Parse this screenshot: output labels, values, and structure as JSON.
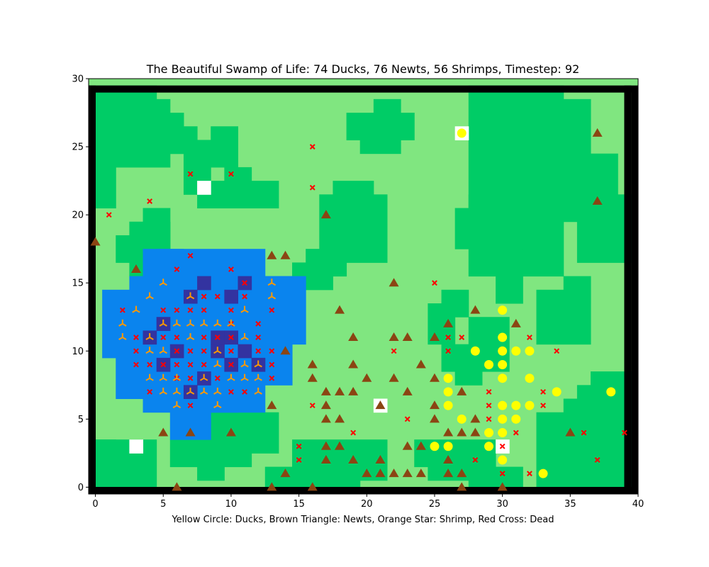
{
  "window": {
    "title": "The Beautiful Swamp of Life: 74 Ducks, 76 Newts, 56 Shrimps, Timestep: 92",
    "xlabel": "Yellow Circle: Ducks, Brown Triangle: Newts, Orange Star: Shrimp, Red Cross: Dead"
  },
  "counts": {
    "ducks": 74,
    "newts": 76,
    "shrimps": 56,
    "timestep": 92
  },
  "chart_data": {
    "type": "scatter",
    "title": "The Beautiful Swamp of Life: 74 Ducks, 76 Newts, 56 Shrimps, Timestep: 92",
    "xlabel": "Yellow Circle: Ducks, Brown Triangle: Newts, Orange Star: Shrimp, Red Cross: Dead",
    "ylabel": "",
    "xlim": [
      -0.5,
      40
    ],
    "ylim": [
      -0.5,
      30
    ],
    "xticks": [
      "0",
      "5",
      "10",
      "15",
      "20",
      "25",
      "30",
      "35",
      "40"
    ],
    "yticks": [
      "0",
      "5",
      "10",
      "15",
      "20",
      "25",
      "30"
    ],
    "colors": {
      "dark_grass": "#00cc66",
      "light_grass": "#80e680",
      "water": "#0a84ee",
      "deep_water": "#3333a0",
      "rock": "#ffffff",
      "border": "#000000",
      "duck": "#ffff00",
      "newt": "#8b4513",
      "shrimp": "#ff9900",
      "dead": "#ff0000"
    },
    "terrain": {
      "dark_rects": [
        [
          0,
          25,
          4,
          29
        ],
        [
          0,
          21,
          1,
          24
        ],
        [
          2,
          24,
          5,
          28
        ],
        [
          5,
          25,
          6,
          27
        ],
        [
          6,
          25,
          7,
          26
        ],
        [
          7,
          25,
          8,
          25
        ],
        [
          7,
          22,
          8,
          24
        ],
        [
          8,
          21,
          13,
          22
        ],
        [
          8,
          24,
          10,
          25
        ],
        [
          9,
          25,
          10,
          26
        ],
        [
          10,
          23,
          11,
          23
        ],
        [
          3,
          16,
          5,
          19
        ],
        [
          2,
          17,
          3,
          18
        ],
        [
          4,
          18,
          5,
          20
        ],
        [
          17,
          17,
          21,
          21
        ],
        [
          18,
          22,
          20,
          22
        ],
        [
          15,
          15,
          17,
          16
        ],
        [
          16,
          16,
          18,
          17
        ],
        [
          19,
          26,
          23,
          27
        ],
        [
          20,
          25,
          22,
          25
        ],
        [
          21,
          28,
          22,
          28
        ],
        [
          28,
          16,
          34,
          29
        ],
        [
          34,
          20,
          38,
          24
        ],
        [
          35,
          25,
          36,
          28
        ],
        [
          36,
          17,
          39,
          21
        ],
        [
          38,
          19,
          39,
          20
        ],
        [
          27,
          18,
          29,
          20
        ],
        [
          28,
          21,
          31,
          21
        ],
        [
          30,
          18,
          31,
          18
        ],
        [
          30,
          14,
          31,
          17
        ],
        [
          0,
          0,
          4,
          3
        ],
        [
          0,
          3,
          1,
          3
        ],
        [
          6,
          2,
          11,
          3
        ],
        [
          8,
          1,
          9,
          1
        ],
        [
          9,
          4,
          12,
          5
        ],
        [
          12,
          3,
          13,
          5
        ],
        [
          13,
          0,
          19,
          1
        ],
        [
          15,
          2,
          18,
          3
        ],
        [
          19,
          1,
          21,
          3
        ],
        [
          24,
          2,
          29,
          3
        ],
        [
          25,
          1,
          27,
          1
        ],
        [
          28,
          9,
          30,
          12
        ],
        [
          27,
          8,
          28,
          9
        ],
        [
          25,
          11,
          26,
          13
        ],
        [
          26,
          9,
          28,
          10
        ],
        [
          26,
          13,
          27,
          14
        ],
        [
          33,
          0,
          39,
          5
        ],
        [
          35,
          5,
          39,
          6
        ],
        [
          36,
          6,
          39,
          7
        ],
        [
          37,
          7,
          39,
          8
        ],
        [
          33,
          11,
          36,
          14
        ],
        [
          35,
          14,
          36,
          15
        ],
        [
          28,
          0,
          31,
          1
        ]
      ],
      "water_rects": [
        [
          5,
          11,
          12,
          17
        ],
        [
          4,
          12,
          6,
          17
        ],
        [
          3,
          13,
          4,
          15
        ],
        [
          1,
          10,
          4,
          14
        ],
        [
          2,
          7,
          4,
          10
        ],
        [
          4,
          6,
          12,
          10
        ],
        [
          12,
          8,
          14,
          15
        ],
        [
          13,
          11,
          15,
          15
        ],
        [
          6,
          4,
          8,
          6
        ],
        [
          8,
          6,
          10,
          8
        ]
      ],
      "deep_cells": [
        [
          8,
          15
        ],
        [
          11,
          15
        ],
        [
          10,
          14
        ],
        [
          7,
          14
        ],
        [
          4,
          11
        ],
        [
          6,
          10
        ],
        [
          9,
          11
        ],
        [
          10,
          11
        ],
        [
          11,
          10
        ],
        [
          5,
          9
        ],
        [
          8,
          8
        ],
        [
          10,
          9
        ],
        [
          7,
          7
        ],
        [
          5,
          12
        ],
        [
          12,
          9
        ],
        [
          9,
          10
        ]
      ],
      "rock_cells": [
        [
          8,
          22
        ],
        [
          3,
          3
        ],
        [
          27,
          26
        ],
        [
          21,
          6
        ],
        [
          30,
          3
        ]
      ],
      "border_px": 10
    },
    "ducks": [
      [
        27,
        26
      ],
      [
        30,
        13
      ],
      [
        28,
        10
      ],
      [
        30,
        11
      ],
      [
        30,
        10
      ],
      [
        31,
        10
      ],
      [
        32,
        10
      ],
      [
        29,
        9
      ],
      [
        30,
        9
      ],
      [
        26,
        8
      ],
      [
        30,
        8
      ],
      [
        32,
        8
      ],
      [
        26,
        7
      ],
      [
        34,
        7
      ],
      [
        38,
        7
      ],
      [
        26,
        6
      ],
      [
        30,
        6
      ],
      [
        31,
        6
      ],
      [
        32,
        6
      ],
      [
        27,
        5
      ],
      [
        30,
        5
      ],
      [
        31,
        5
      ],
      [
        25,
        3
      ],
      [
        26,
        3
      ],
      [
        29,
        4
      ],
      [
        30,
        4
      ],
      [
        29,
        3
      ],
      [
        30,
        2
      ],
      [
        33,
        1
      ]
    ],
    "newts": [
      [
        37,
        26
      ],
      [
        37,
        21
      ],
      [
        0,
        18
      ],
      [
        17,
        20
      ],
      [
        3,
        16
      ],
      [
        13,
        17
      ],
      [
        14,
        17
      ],
      [
        22,
        15
      ],
      [
        18,
        13
      ],
      [
        28,
        13
      ],
      [
        26,
        12
      ],
      [
        31,
        12
      ],
      [
        19,
        11
      ],
      [
        22,
        11
      ],
      [
        23,
        11
      ],
      [
        25,
        11
      ],
      [
        14,
        10
      ],
      [
        16,
        9
      ],
      [
        19,
        9
      ],
      [
        24,
        9
      ],
      [
        16,
        8
      ],
      [
        20,
        8
      ],
      [
        22,
        8
      ],
      [
        25,
        8
      ],
      [
        17,
        7
      ],
      [
        18,
        7
      ],
      [
        19,
        7
      ],
      [
        23,
        7
      ],
      [
        27,
        7
      ],
      [
        13,
        6
      ],
      [
        17,
        6
      ],
      [
        21,
        6
      ],
      [
        25,
        6
      ],
      [
        17,
        5
      ],
      [
        18,
        5
      ],
      [
        25,
        5
      ],
      [
        28,
        5
      ],
      [
        5,
        4
      ],
      [
        7,
        4
      ],
      [
        10,
        4
      ],
      [
        26,
        4
      ],
      [
        27,
        4
      ],
      [
        28,
        4
      ],
      [
        35,
        4
      ],
      [
        17,
        3
      ],
      [
        18,
        3
      ],
      [
        23,
        3
      ],
      [
        24,
        3
      ],
      [
        17,
        2
      ],
      [
        19,
        2
      ],
      [
        21,
        2
      ],
      [
        26,
        2
      ],
      [
        14,
        1
      ],
      [
        20,
        1
      ],
      [
        21,
        1
      ],
      [
        22,
        1
      ],
      [
        23,
        1
      ],
      [
        24,
        1
      ],
      [
        26,
        1
      ],
      [
        27,
        1
      ],
      [
        6,
        0
      ],
      [
        13,
        0
      ],
      [
        16,
        0
      ],
      [
        27,
        0
      ],
      [
        30,
        0
      ]
    ],
    "shrimp": [
      [
        5,
        15
      ],
      [
        13,
        15
      ],
      [
        4,
        14
      ],
      [
        7,
        14
      ],
      [
        13,
        14
      ],
      [
        3,
        13
      ],
      [
        11,
        13
      ],
      [
        2,
        12
      ],
      [
        5,
        12
      ],
      [
        6,
        12
      ],
      [
        7,
        12
      ],
      [
        8,
        12
      ],
      [
        9,
        12
      ],
      [
        10,
        12
      ],
      [
        2,
        11
      ],
      [
        4,
        11
      ],
      [
        7,
        11
      ],
      [
        11,
        11
      ],
      [
        5,
        10
      ],
      [
        9,
        10
      ],
      [
        11,
        9
      ],
      [
        4,
        8
      ],
      [
        5,
        8
      ],
      [
        6,
        8
      ],
      [
        8,
        8
      ],
      [
        10,
        8
      ],
      [
        11,
        8
      ],
      [
        12,
        8
      ],
      [
        5,
        7
      ],
      [
        6,
        7
      ],
      [
        7,
        7
      ],
      [
        8,
        7
      ],
      [
        9,
        7
      ],
      [
        12,
        7
      ],
      [
        6,
        6
      ],
      [
        9,
        6
      ],
      [
        4,
        10
      ],
      [
        9,
        9
      ],
      [
        12,
        9
      ]
    ],
    "dead": [
      [
        16,
        25
      ],
      [
        7,
        23
      ],
      [
        10,
        23
      ],
      [
        16,
        22
      ],
      [
        4,
        21
      ],
      [
        1,
        20
      ],
      [
        7,
        17
      ],
      [
        6,
        16
      ],
      [
        10,
        16
      ],
      [
        8,
        14
      ],
      [
        9,
        14
      ],
      [
        11,
        15
      ],
      [
        11,
        14
      ],
      [
        25,
        15
      ],
      [
        2,
        13
      ],
      [
        5,
        13
      ],
      [
        6,
        13
      ],
      [
        7,
        13
      ],
      [
        8,
        13
      ],
      [
        10,
        13
      ],
      [
        13,
        13
      ],
      [
        10,
        12
      ],
      [
        12,
        12
      ],
      [
        3,
        11
      ],
      [
        5,
        11
      ],
      [
        6,
        11
      ],
      [
        8,
        11
      ],
      [
        9,
        11
      ],
      [
        10,
        11
      ],
      [
        12,
        11
      ],
      [
        26,
        11
      ],
      [
        27,
        11
      ],
      [
        32,
        11
      ],
      [
        3,
        10
      ],
      [
        6,
        10
      ],
      [
        7,
        10
      ],
      [
        8,
        10
      ],
      [
        10,
        10
      ],
      [
        12,
        10
      ],
      [
        13,
        10
      ],
      [
        22,
        10
      ],
      [
        26,
        10
      ],
      [
        34,
        10
      ],
      [
        3,
        9
      ],
      [
        4,
        9
      ],
      [
        5,
        9
      ],
      [
        6,
        9
      ],
      [
        7,
        9
      ],
      [
        8,
        9
      ],
      [
        10,
        9
      ],
      [
        13,
        9
      ],
      [
        6,
        8
      ],
      [
        7,
        8
      ],
      [
        9,
        8
      ],
      [
        13,
        8
      ],
      [
        4,
        7
      ],
      [
        10,
        7
      ],
      [
        11,
        7
      ],
      [
        29,
        7
      ],
      [
        33,
        7
      ],
      [
        7,
        6
      ],
      [
        16,
        6
      ],
      [
        29,
        6
      ],
      [
        33,
        6
      ],
      [
        23,
        5
      ],
      [
        29,
        5
      ],
      [
        19,
        4
      ],
      [
        31,
        4
      ],
      [
        36,
        4
      ],
      [
        39,
        4
      ],
      [
        15,
        3
      ],
      [
        30,
        3
      ],
      [
        15,
        2
      ],
      [
        28,
        2
      ],
      [
        37,
        2
      ],
      [
        30,
        1
      ],
      [
        32,
        1
      ]
    ]
  }
}
